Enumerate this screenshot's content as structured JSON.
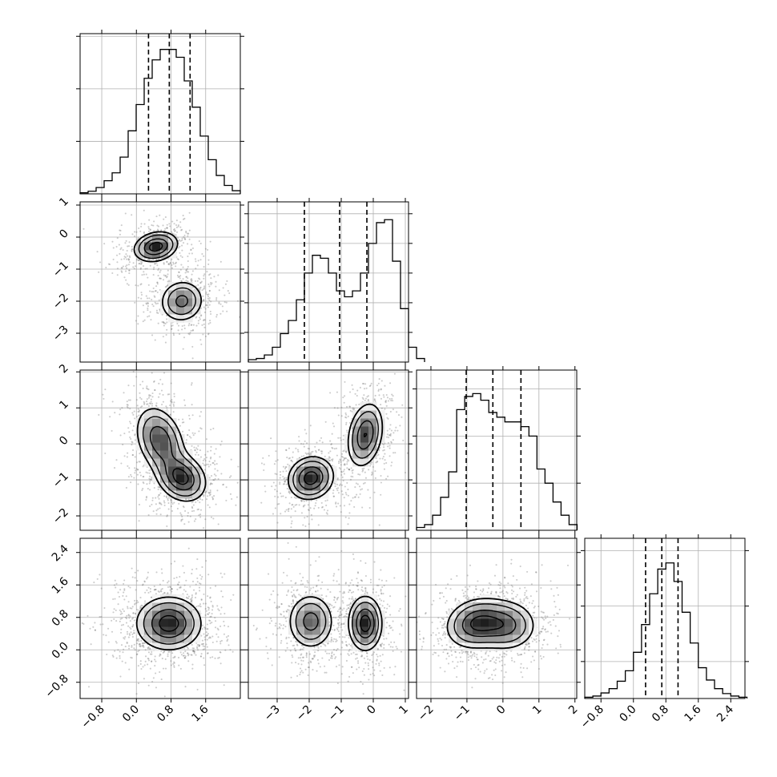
{
  "chart_data": {
    "type": "corner",
    "n_params": 4,
    "title": "",
    "legend": "none",
    "grid": true,
    "colors": {
      "line": "#000000",
      "grid": "#b0b0b0",
      "background": "#ffffff",
      "points": "#6e6e6e"
    },
    "params": [
      {
        "index": 0,
        "label": "",
        "range": [
          -1.3,
          2.4
        ],
        "ticks": [
          -0.8,
          0.0,
          0.8,
          1.6
        ],
        "tick_labels": [
          "−0.8",
          "0.0",
          "0.8",
          "1.6"
        ]
      },
      {
        "index": 1,
        "label": "",
        "range": [
          -3.9,
          1.1
        ],
        "ticks": [
          -3,
          -2,
          -1,
          0,
          1
        ],
        "tick_labels": [
          "−3",
          "−2",
          "−1",
          "0",
          "1"
        ]
      },
      {
        "index": 2,
        "label": "",
        "range": [
          -2.4,
          2.05
        ],
        "ticks": [
          -2,
          -1,
          0,
          1,
          2
        ],
        "tick_labels": [
          "−2",
          "−1",
          "0",
          "1",
          "2"
        ]
      },
      {
        "index": 3,
        "label": "",
        "range": [
          -1.2,
          2.75
        ],
        "ticks": [
          -0.8,
          0.0,
          0.8,
          1.6,
          2.4
        ],
        "tick_labels": [
          "−0.8",
          "0.0",
          "0.8",
          "1.6",
          "2.4"
        ]
      }
    ],
    "histograms": [
      {
        "param": 0,
        "bin_start": -1.3,
        "bin_width": 0.185,
        "counts": [
          0.2,
          0.5,
          1.2,
          2.5,
          4.0,
          7.0,
          12.0,
          17.0,
          22.0,
          25.5,
          27.5,
          27.5,
          26.0,
          21.5,
          16.5,
          11.0,
          6.5,
          3.5,
          1.6,
          0.6
        ],
        "ymax": 30.5,
        "y_ticks": [
          10,
          20,
          30
        ],
        "quantiles": [
          0.28,
          0.76,
          1.24
        ]
      },
      {
        "param": 1,
        "bin_start": -3.9,
        "bin_width": 0.25,
        "counts": [
          0.4,
          0.6,
          1.2,
          2.5,
          4.8,
          7.0,
          10.5,
          15.0,
          18.0,
          17.5,
          15.0,
          12.0,
          11.0,
          12.0,
          15.0,
          20.0,
          23.5,
          24.0,
          17.0,
          9.0,
          2.5,
          0.6
        ],
        "ymax": 27,
        "y_ticks": [
          5,
          10,
          15,
          20,
          25
        ],
        "quantiles": [
          -2.15,
          -1.05,
          -0.2
        ]
      },
      {
        "param": 2,
        "bin_start": -2.4,
        "bin_width": 0.223,
        "counts": [
          0.3,
          0.6,
          1.6,
          3.5,
          6.2,
          12.8,
          14.2,
          14.5,
          13.8,
          12.5,
          12.0,
          11.5,
          11.5,
          11.0,
          10.0,
          6.5,
          5.0,
          3.0,
          1.6,
          0.6
        ],
        "ymax": 17,
        "y_ticks": [
          5,
          10,
          15
        ],
        "quantiles": [
          -1.02,
          -0.28,
          0.5
        ]
      },
      {
        "param": 3,
        "bin_start": -1.2,
        "bin_width": 0.2,
        "counts": [
          0.2,
          0.4,
          0.9,
          1.6,
          2.8,
          4.5,
          7.5,
          12.0,
          17.0,
          21.0,
          22.0,
          19.0,
          14.0,
          9.0,
          5.0,
          3.0,
          1.6,
          0.8,
          0.4,
          0.2
        ],
        "ymax": 26,
        "y_ticks": [
          6,
          15,
          24
        ],
        "quantiles": [
          0.3,
          0.7,
          1.1
        ]
      }
    ],
    "pairs": [
      {
        "x": 0,
        "y": 1,
        "modes": [
          {
            "mx": 0.45,
            "my": -0.3,
            "sx": 0.27,
            "sy": 0.25,
            "rho": 0.2,
            "w": 0.5
          },
          {
            "mx": 1.05,
            "my": -2.0,
            "sx": 0.27,
            "sy": 0.35,
            "rho": 0.05,
            "w": 0.5
          }
        ]
      },
      {
        "x": 0,
        "y": 2,
        "modes": [
          {
            "mx": 0.55,
            "my": 0.1,
            "sx": 0.3,
            "sy": 0.5,
            "rho": -0.3,
            "w": 0.55
          },
          {
            "mx": 1.05,
            "my": -0.95,
            "sx": 0.3,
            "sy": 0.35,
            "rho": -0.2,
            "w": 0.45
          }
        ]
      },
      {
        "x": 1,
        "y": 2,
        "modes": [
          {
            "mx": -1.95,
            "my": -0.95,
            "sx": 0.38,
            "sy": 0.32,
            "rho": 0.1,
            "w": 0.5
          },
          {
            "mx": -0.25,
            "my": 0.25,
            "sx": 0.3,
            "sy": 0.48,
            "rho": 0.25,
            "w": 0.5
          }
        ]
      },
      {
        "x": 0,
        "y": 3,
        "modes": [
          {
            "mx": 0.75,
            "my": 0.65,
            "sx": 0.4,
            "sy": 0.35,
            "rho": 0.0,
            "w": 1.0
          }
        ]
      },
      {
        "x": 1,
        "y": 3,
        "modes": [
          {
            "mx": -1.95,
            "my": 0.7,
            "sx": 0.38,
            "sy": 0.36,
            "rho": 0.0,
            "w": 0.5
          },
          {
            "mx": -0.25,
            "my": 0.65,
            "sx": 0.28,
            "sy": 0.36,
            "rho": 0.0,
            "w": 0.5
          }
        ]
      },
      {
        "x": 2,
        "y": 3,
        "modes": [
          {
            "mx": -0.75,
            "my": 0.65,
            "sx": 0.45,
            "sy": 0.33,
            "rho": 0.15,
            "w": 0.55
          },
          {
            "mx": 0.1,
            "my": 0.6,
            "sx": 0.45,
            "sy": 0.33,
            "rho": 0.0,
            "w": 0.45
          }
        ]
      }
    ],
    "contour_levels": [
      0.18,
      0.35,
      0.62,
      0.86
    ]
  }
}
